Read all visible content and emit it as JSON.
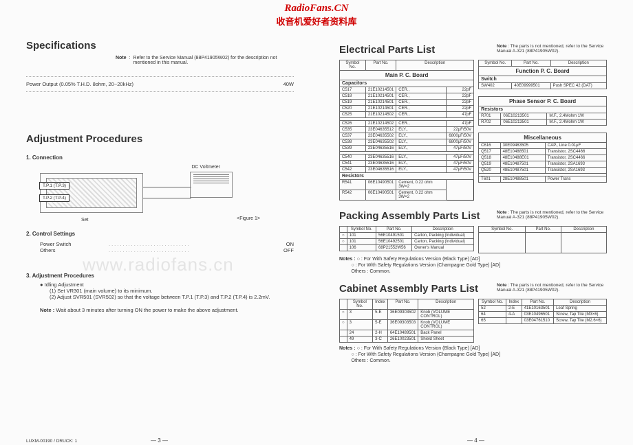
{
  "watermark": {
    "line1": "RadioFans.CN",
    "line2": "收音机爱好者资料库",
    "mid": "www.radiofans.cn"
  },
  "left": {
    "spec_title": "Specifications",
    "spec_note_label": "Note",
    "spec_note": "Refer to the Service Manual (88P41905W02) for the description not mentioned in this manual.",
    "power_label": "Power Output (0.05% T.H.D. 8ohm, 20~20kHz)",
    "power_dots": "...........................................................................................",
    "power_value": "40W",
    "adj_title": "Adjustment Procedures",
    "conn_label": "1.  Connection",
    "dc_volt": "DC Voltmeter",
    "tp1": "T.P.1 (T.P.3)",
    "tp2": "T.P.2 (T.P.4)",
    "set": "Set",
    "figure": "<Figure 1>",
    "ctrl_label": "2.  Control Settings",
    "ctrl_rows": [
      {
        "l": "Power Switch",
        "v": "ON"
      },
      {
        "l": "Others",
        "v": "OFF"
      }
    ],
    "dots": ".............................",
    "proc_label": "3.  Adjustment Procedures",
    "idling_head": "Idling Adjustment",
    "idling_items": [
      "(1)  Set VR301 (main volume) to its minimum.",
      "(2)  Adjust SVR501 (SVR502) so that the voltage between T.P.1 (T.P.3) and T.P.2 (T.P.4) is 2.2mV."
    ],
    "adj_note_label": "Note :",
    "adj_note": "Wait about 3 minutes after turning ON the power to make the above adjustment.",
    "footer": "LUXM-00190 / DRUCK: 1",
    "page_num": "—  3  —"
  },
  "right": {
    "epl_title": "Electrical Parts List",
    "epl_note_label": "Note",
    "epl_note": "The parts is not mentioned, refer to the Service Manual A-321 (88P41905W02).",
    "headers": {
      "sym": "Symbol No.",
      "part": "Part No.",
      "desc": "Description",
      "idx": "Index"
    },
    "main_board": "Main  P.  C.  Board",
    "func_board": "Function  P.  C.  Board",
    "phase_board": "Phase Sensor  P.  C.  Board",
    "misc": "Miscellaneous",
    "caps_head": "Capacitors",
    "switch_head": "Switch",
    "resistors_head": "Resistors",
    "caps1": [
      {
        "s": "C517",
        "p": "21E10214501",
        "d": "CER.,",
        "v": "22pF"
      },
      {
        "s": "C518",
        "p": "21E10214501",
        "d": "CER.,",
        "v": "22pF"
      },
      {
        "s": "C519",
        "p": "21E10214501",
        "d": "CER.,",
        "v": "22pF"
      },
      {
        "s": "C520",
        "p": "21E10214501",
        "d": "CER.,",
        "v": "22pF"
      },
      {
        "s": "C525",
        "p": "21E10214502",
        "d": "CER.,",
        "v": "47pF"
      }
    ],
    "caps2": [
      {
        "s": "C526",
        "p": "21E10214502",
        "d": "CER.,",
        "v": "47pF"
      },
      {
        "s": "C535",
        "p": "23E04635512",
        "d": "ELY.,",
        "v": "22μF/50V"
      },
      {
        "s": "C537",
        "p": "23E04635502",
        "d": "ELY.,",
        "v": "6800μF/50V"
      },
      {
        "s": "C538",
        "p": "23E04635502",
        "d": "ELY.,",
        "v": "6800μF/50V"
      },
      {
        "s": "C539",
        "p": "23E04635516",
        "d": "ELY.,",
        "v": "47μF/50V"
      }
    ],
    "caps3": [
      {
        "s": "C540",
        "p": "23E04635516",
        "d": "ELY.,",
        "v": "47μF/50V"
      },
      {
        "s": "C541",
        "p": "23E04635516",
        "d": "ELY.,",
        "v": "47μF/50V"
      },
      {
        "s": "C542",
        "p": "23E04635516",
        "d": "ELY.,",
        "v": "47μF/50V"
      }
    ],
    "res1": [
      {
        "s": "R541",
        "p": "06E10490501",
        "d": "Cement, 0.22 ohm  3W×2"
      },
      {
        "s": "R542",
        "p": "06E10490501",
        "d": "Cement, 0.22 ohm  3W×2"
      }
    ],
    "switch": [
      {
        "s": "SW402",
        "p": "40E09999501",
        "d": "Push SPEC 42 (DAT)"
      }
    ],
    "phase_res": [
      {
        "s": "R701",
        "p": "06E10213501",
        "d": "M.F., 2.4Mohm   1W"
      },
      {
        "s": "R702",
        "p": "06E10213501",
        "d": "M.F., 2.4Mohm   1W"
      }
    ],
    "misc_rows": [
      {
        "s": "C616",
        "p": "30E09463505",
        "d": "CAP., Line           0.01μF"
      },
      {
        "s": "Q517",
        "p": "48E10488501",
        "d": "Transistor, 2SC4466"
      },
      {
        "s": "Q518",
        "p": "48E10488E01",
        "d": "Transistor, 2SC4466"
      },
      {
        "s": "Q519",
        "p": "48E10487501",
        "d": "Transistor, 2SA1693"
      },
      {
        "s": "Q520",
        "p": "48E10487501",
        "d": "Transistor, 2SA1693"
      }
    ],
    "misc_rows2": [
      {
        "s": "T601",
        "p": "28E10488501",
        "d": "Power Trans"
      }
    ],
    "pack_title": "Packing Assembly Parts List",
    "pack_rows": [
      {
        "c": "○",
        "s": "101",
        "p": "56E10491501",
        "d": "Carton, Packing (Individual)"
      },
      {
        "c": "○",
        "s": "101",
        "p": "56E10492501",
        "d": "Carton, Packing (Individual)"
      },
      {
        "c": "",
        "s": "106",
        "p": "68P21552W56",
        "d": "Owner's Manual"
      }
    ],
    "notes_label": "Notes :",
    "notes_lines": [
      "○ : For With Safety Regulations Version (Black Type) [AD]",
      "○ : For With Safety Regulations Version (Champagne Gold Type) [AD]",
      "Others : Common."
    ],
    "cab_title": "Cabinet Assembly Parts List",
    "cab_left": [
      {
        "c": "○",
        "s": "3",
        "i": "5-E",
        "p": "36E09303502",
        "d": "Knob (VOLUME CONTROL)"
      },
      {
        "c": "○",
        "s": "3",
        "i": "5-E",
        "p": "36E09303503",
        "d": "Knob (VOLUME CONTROL)"
      },
      {
        "c": "",
        "s": "24",
        "i": "2-H",
        "p": "64E10489501",
        "d": "Back Panel"
      },
      {
        "c": "",
        "s": "49",
        "i": "3-C",
        "p": "26E10023501",
        "d": "Shield Sheet"
      }
    ],
    "cab_right": [
      {
        "s": "52",
        "i": "2-E",
        "p": "41E10163501",
        "d": "Leaf Spring"
      },
      {
        "s": "64",
        "i": "4-A",
        "p": "03E10496501",
        "d": "Screw, Tap Tite (M3×6)"
      },
      {
        "s": "65",
        "i": "",
        "p": "03E04761510",
        "d": "Screw, Tap Tite (M2.6×6)"
      }
    ],
    "page_num": "—  4  —"
  }
}
